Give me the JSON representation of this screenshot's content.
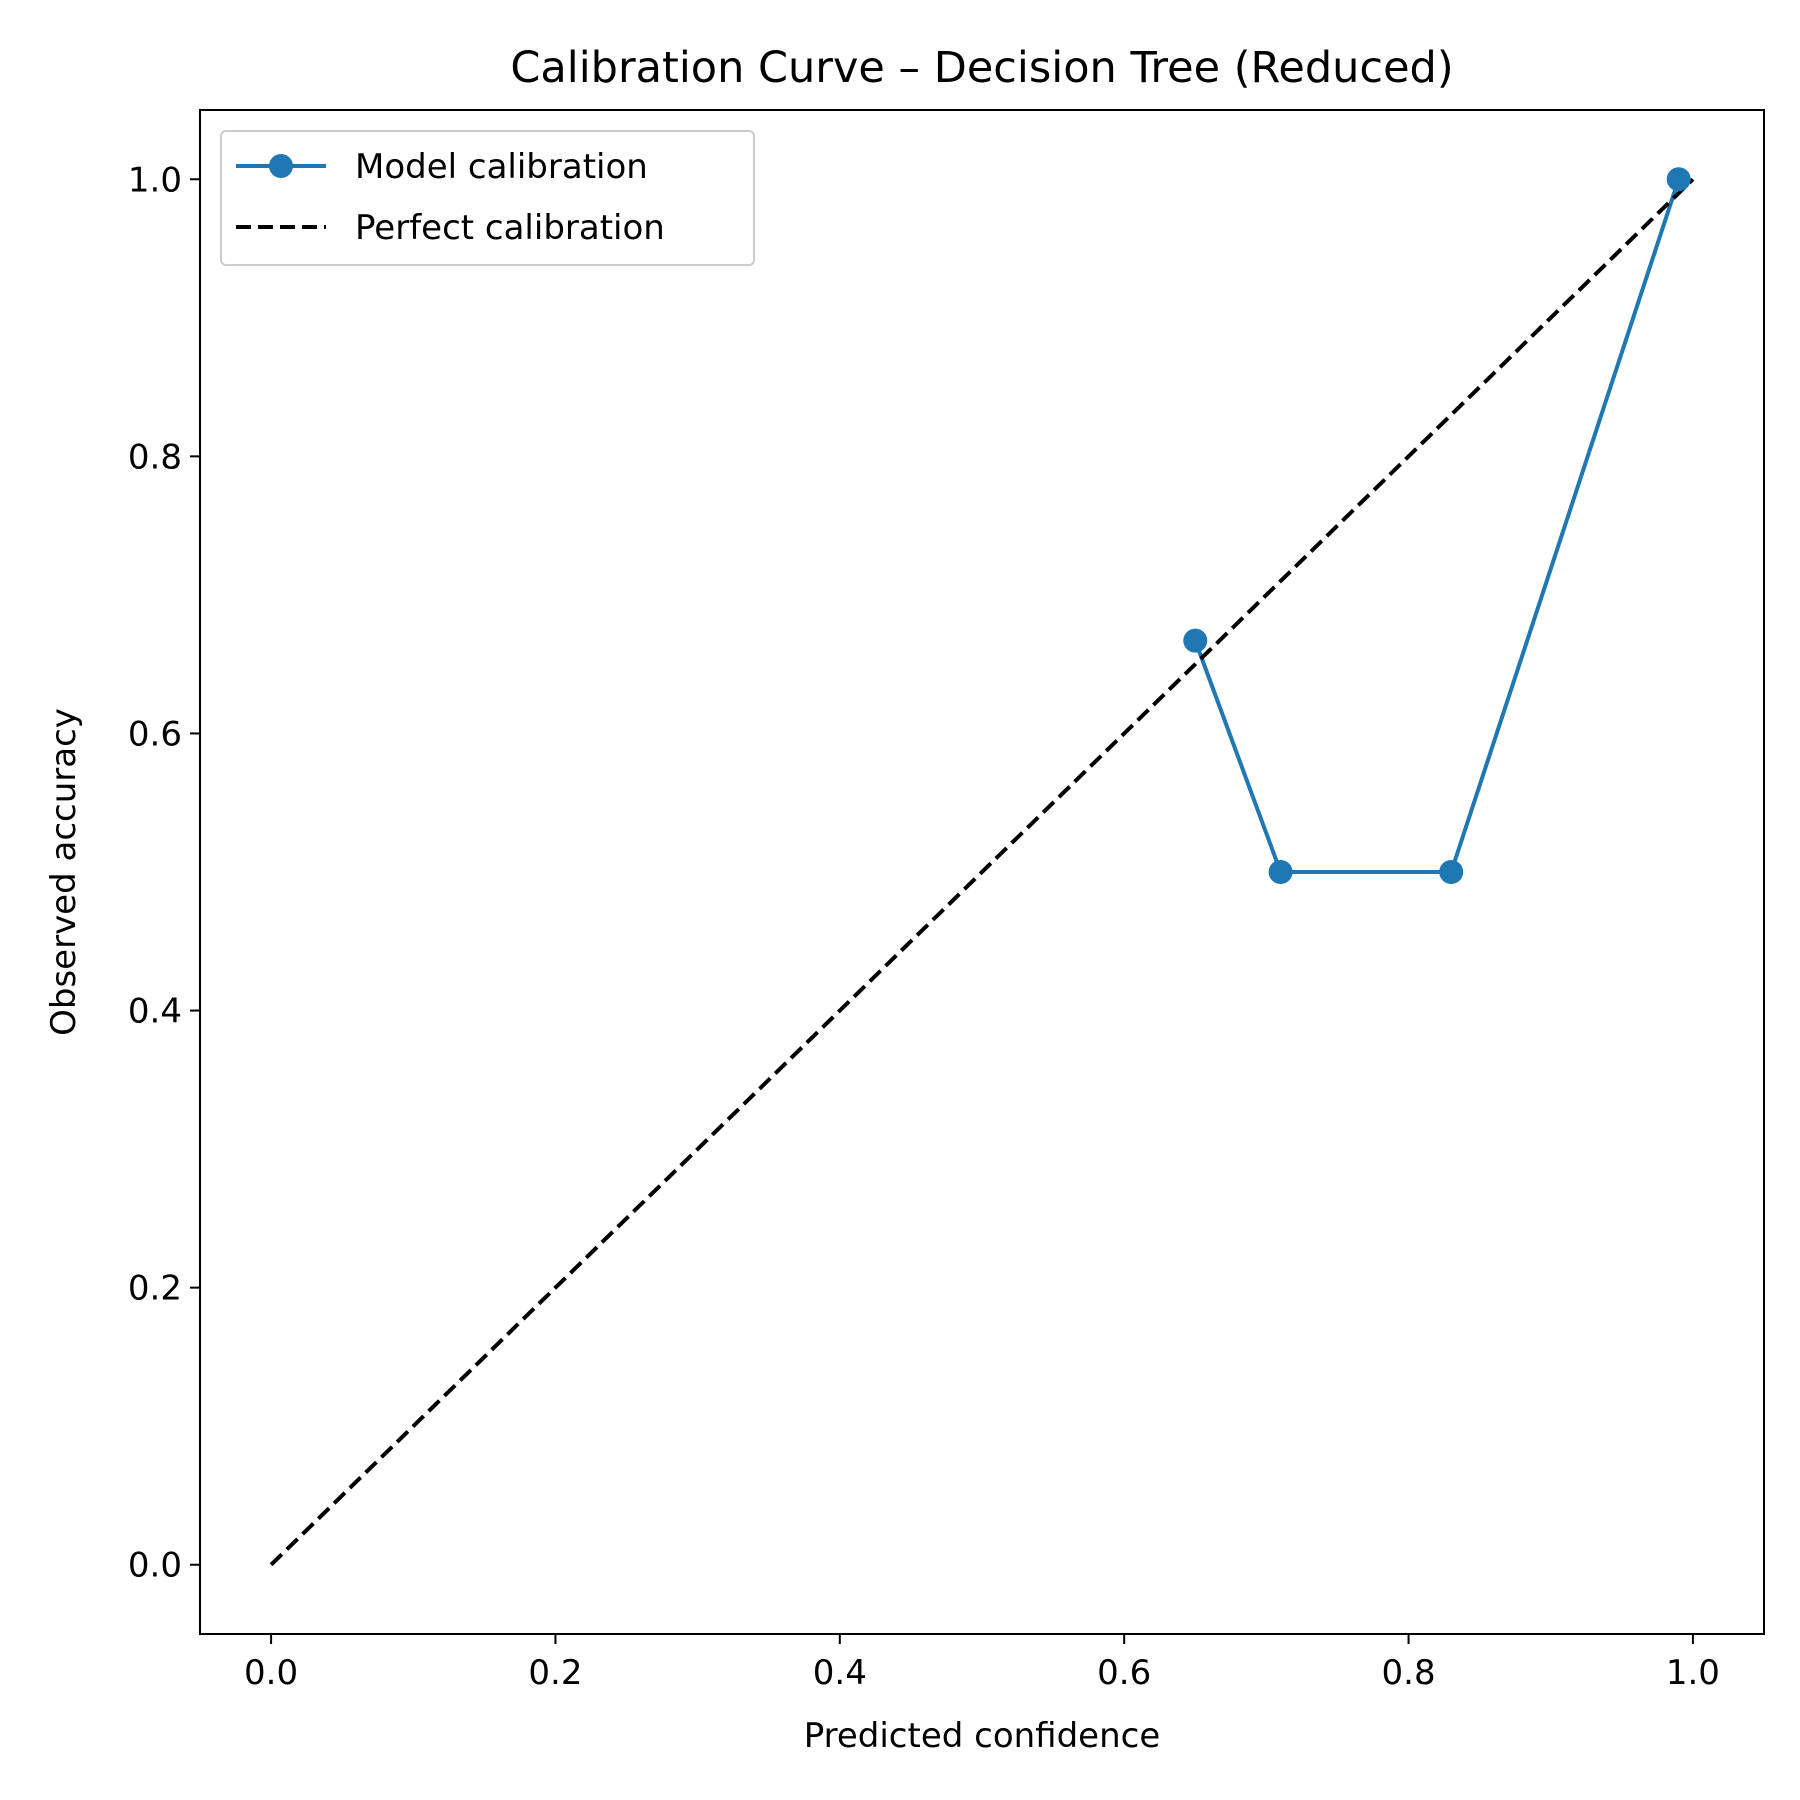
{
  "chart_data": {
    "type": "line",
    "title": "Calibration Curve – Decision Tree (Reduced)",
    "xlabel": "Predicted confidence",
    "ylabel": "Observed accuracy",
    "xlim": [
      -0.05,
      1.05
    ],
    "ylim": [
      -0.05,
      1.05
    ],
    "xticks": [
      0.0,
      0.2,
      0.4,
      0.6,
      0.8,
      1.0
    ],
    "yticks": [
      0.0,
      0.2,
      0.4,
      0.6,
      0.8,
      1.0
    ],
    "xtick_labels": [
      "0.0",
      "0.2",
      "0.4",
      "0.6",
      "0.8",
      "1.0"
    ],
    "ytick_labels": [
      "0.0",
      "0.2",
      "0.4",
      "0.6",
      "0.8",
      "1.0"
    ],
    "grid": false,
    "legend_position": "top-left",
    "series": [
      {
        "name": "Model calibration",
        "style": "solid-with-markers",
        "color": "#1f77b4",
        "x": [
          0.65,
          0.71,
          0.83,
          0.99
        ],
        "y": [
          0.667,
          0.5,
          0.5,
          1.0
        ]
      },
      {
        "name": "Perfect calibration",
        "style": "dashed",
        "color": "#000000",
        "x": [
          0.0,
          1.0
        ],
        "y": [
          0.0,
          1.0
        ]
      }
    ]
  }
}
